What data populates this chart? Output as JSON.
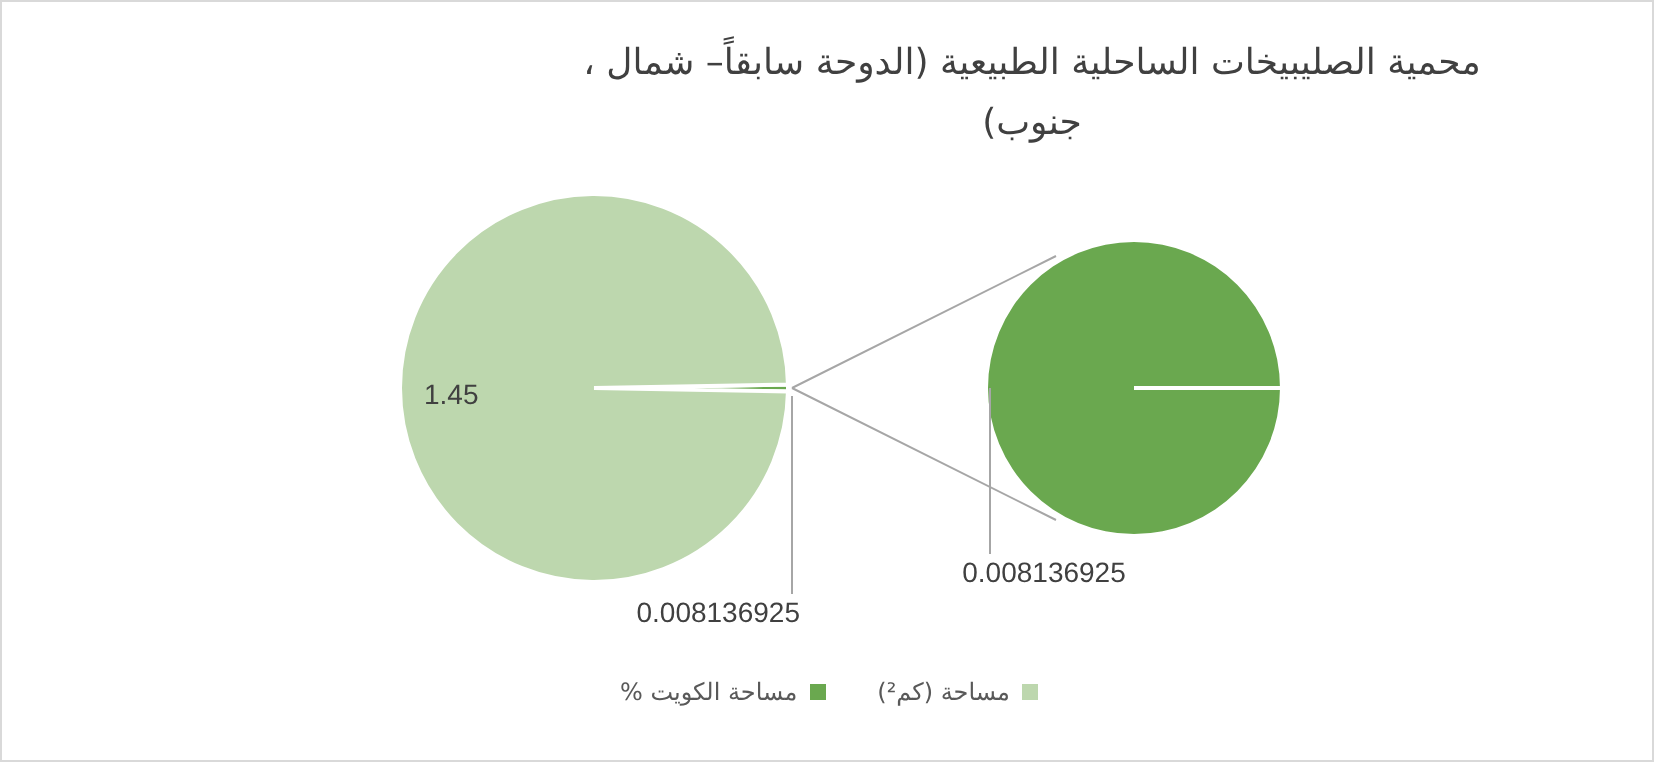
{
  "chart_data": [
    {
      "type": "pie",
      "title": "محمية الصليبيخات الساحلية الطبيعية (الدوحة سابقاً– شمال ، جنوب)",
      "categories": [
        "مساحة (كم²)",
        "مساحة الكويت %"
      ],
      "values": [
        1.45,
        0.008136925
      ],
      "colors": [
        "#bdd7ae",
        "#6aa84f"
      ],
      "data_labels": true,
      "legend": "bottom"
    },
    {
      "type": "pie",
      "categories": [
        null
      ],
      "values": [
        0.008136925
      ],
      "colors": [
        "#6aa84f"
      ],
      "data_labels": true
    }
  ]
}
